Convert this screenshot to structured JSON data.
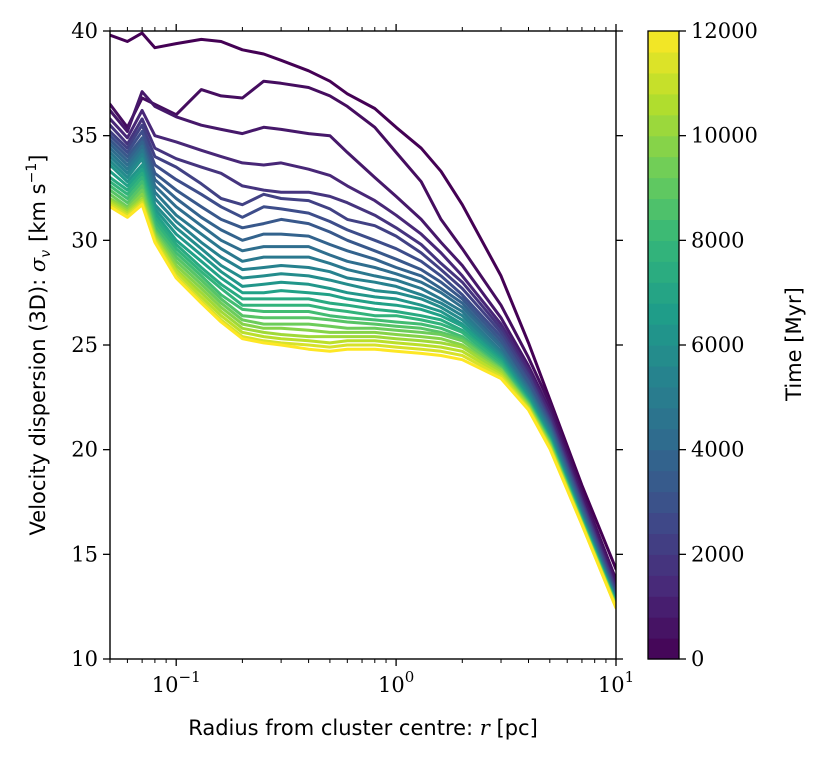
{
  "chart_data": {
    "type": "line",
    "title": "",
    "xlabel_text": "Radius from cluster centre: ",
    "xlabel_sym": "r",
    "xlabel_unit": " [pc]",
    "ylabel_text": "Velocity dispersion (3D): ",
    "ylabel_sym": "σ",
    "ylabel_sub": "v",
    "ylabel_unit": "[km s",
    "ylabel_exp": "−1",
    "ylabel_close": "]",
    "xscale": "log",
    "xlim": [
      0.05,
      10
    ],
    "ylim": [
      10,
      40
    ],
    "yticks": [
      "10",
      "15",
      "20",
      "25",
      "30",
      "35",
      "40"
    ],
    "xtick_base": "10",
    "xtick_exps": [
      "−1",
      "0",
      "1"
    ],
    "colorbar": {
      "label": "Time [Myr]",
      "min": 0,
      "max": 12000,
      "ticks": [
        "0",
        "2000",
        "4000",
        "6000",
        "8000",
        "10000",
        "12000"
      ]
    },
    "x": [
      0.05,
      0.06,
      0.07,
      0.08,
      0.1,
      0.13,
      0.16,
      0.2,
      0.25,
      0.3,
      0.4,
      0.5,
      0.6,
      0.8,
      1.0,
      1.3,
      1.6,
      2.0,
      3.0,
      4.0,
      5.0,
      7.0,
      10.0
    ],
    "series": [
      {
        "name": "t=0",
        "time": 0,
        "values": [
          39.8,
          39.5,
          39.9,
          39.2,
          39.4,
          39.6,
          39.5,
          39.1,
          38.9,
          38.6,
          38.1,
          37.6,
          37.0,
          36.3,
          35.4,
          34.4,
          33.3,
          31.7,
          28.3,
          25.1,
          22.4,
          18.3,
          14.3
        ]
      },
      {
        "name": "t=400",
        "time": 400,
        "values": [
          36.5,
          35.4,
          36.8,
          36.5,
          36.0,
          37.2,
          36.9,
          36.8,
          37.6,
          37.5,
          37.3,
          36.9,
          36.4,
          35.4,
          34.2,
          32.8,
          31.0,
          29.6,
          26.9,
          24.4,
          22.2,
          18.0,
          13.8
        ]
      },
      {
        "name": "t=800",
        "time": 800,
        "values": [
          36.2,
          35.2,
          37.1,
          36.4,
          35.9,
          35.5,
          35.3,
          35.1,
          35.4,
          35.3,
          35.1,
          35.0,
          34.2,
          33.0,
          32.1,
          31.0,
          29.9,
          28.8,
          26.3,
          24.0,
          21.9,
          17.8,
          13.6
        ]
      },
      {
        "name": "t=1300",
        "time": 1300,
        "values": [
          35.8,
          34.9,
          36.2,
          35.0,
          34.7,
          34.3,
          34.0,
          33.7,
          33.6,
          33.7,
          33.4,
          33.1,
          32.6,
          31.9,
          31.2,
          30.3,
          29.4,
          28.3,
          26.0,
          23.8,
          21.7,
          17.6,
          13.4
        ]
      },
      {
        "name": "t=1800",
        "time": 1800,
        "values": [
          35.5,
          34.6,
          35.8,
          34.4,
          33.9,
          33.5,
          33.2,
          32.6,
          32.4,
          32.3,
          32.3,
          32.1,
          31.8,
          31.2,
          30.6,
          29.8,
          28.9,
          28.0,
          25.8,
          23.6,
          21.5,
          17.5,
          13.3
        ]
      },
      {
        "name": "t=2300",
        "time": 2300,
        "values": [
          35.2,
          34.4,
          35.5,
          34.0,
          33.5,
          32.7,
          32.0,
          31.7,
          32.2,
          32.0,
          31.9,
          31.5,
          31.0,
          30.7,
          30.2,
          29.4,
          28.6,
          27.7,
          25.6,
          23.5,
          21.4,
          17.4,
          13.2
        ]
      },
      {
        "name": "t=2800",
        "time": 2800,
        "values": [
          35.0,
          34.2,
          35.2,
          33.6,
          32.9,
          32.2,
          31.6,
          31.1,
          31.6,
          31.5,
          31.3,
          30.9,
          30.5,
          30.0,
          29.6,
          29.0,
          28.3,
          27.4,
          25.4,
          23.3,
          21.3,
          17.3,
          13.1
        ]
      },
      {
        "name": "t=3300",
        "time": 3300,
        "values": [
          34.8,
          34.0,
          34.9,
          33.2,
          32.4,
          31.6,
          31.0,
          30.6,
          30.8,
          31.0,
          30.8,
          30.4,
          30.0,
          29.5,
          29.1,
          28.6,
          28.0,
          27.2,
          25.2,
          23.2,
          21.2,
          17.2,
          13.0
        ]
      },
      {
        "name": "t=3800",
        "time": 3800,
        "values": [
          34.6,
          33.8,
          34.7,
          32.9,
          32.0,
          31.1,
          30.5,
          30.0,
          30.3,
          30.3,
          30.2,
          29.8,
          29.5,
          29.1,
          28.7,
          28.3,
          27.7,
          27.0,
          25.0,
          23.0,
          21.1,
          17.1,
          12.95
        ]
      },
      {
        "name": "t=4300",
        "time": 4300,
        "values": [
          34.4,
          33.6,
          34.5,
          32.6,
          31.6,
          30.7,
          30.0,
          29.5,
          29.7,
          29.7,
          29.7,
          29.3,
          29.0,
          28.7,
          28.4,
          28.0,
          27.5,
          26.8,
          24.9,
          22.9,
          21.0,
          17.0,
          12.9
        ]
      },
      {
        "name": "t=4800",
        "time": 4800,
        "values": [
          34.2,
          33.4,
          34.3,
          32.3,
          31.2,
          30.3,
          29.6,
          29.0,
          29.2,
          29.2,
          29.2,
          28.9,
          28.6,
          28.3,
          28.1,
          27.7,
          27.2,
          26.6,
          24.7,
          22.8,
          20.9,
          16.9,
          12.85
        ]
      },
      {
        "name": "t=5300",
        "time": 5300,
        "values": [
          34.0,
          33.2,
          34.1,
          32.0,
          30.9,
          29.9,
          29.2,
          28.6,
          28.7,
          28.8,
          28.7,
          28.5,
          28.2,
          28.0,
          27.8,
          27.4,
          27.0,
          26.4,
          24.6,
          22.7,
          20.8,
          16.85,
          12.8
        ]
      },
      {
        "name": "t=5800",
        "time": 5800,
        "values": [
          33.8,
          33.0,
          33.9,
          31.7,
          30.6,
          29.6,
          28.8,
          28.2,
          28.3,
          28.4,
          28.3,
          28.1,
          27.9,
          27.6,
          27.5,
          27.2,
          26.8,
          26.2,
          24.5,
          22.6,
          20.7,
          16.8,
          12.75
        ]
      },
      {
        "name": "t=6300",
        "time": 6300,
        "values": [
          33.6,
          32.8,
          33.6,
          31.5,
          30.3,
          29.3,
          28.5,
          27.8,
          27.9,
          28.0,
          27.9,
          27.7,
          27.5,
          27.3,
          27.2,
          26.9,
          26.6,
          26.0,
          24.4,
          22.5,
          20.6,
          16.75,
          12.7
        ]
      },
      {
        "name": "t=6800",
        "time": 6800,
        "values": [
          33.3,
          32.6,
          33.4,
          31.3,
          30.0,
          29.0,
          28.2,
          27.5,
          27.5,
          27.6,
          27.5,
          27.4,
          27.2,
          27.0,
          26.9,
          26.7,
          26.4,
          25.9,
          24.3,
          22.4,
          20.55,
          16.7,
          12.68
        ]
      },
      {
        "name": "t=7300",
        "time": 7300,
        "values": [
          33.0,
          32.4,
          33.2,
          31.1,
          29.8,
          28.7,
          27.9,
          27.2,
          27.2,
          27.2,
          27.2,
          27.0,
          26.9,
          26.7,
          26.6,
          26.4,
          26.2,
          25.7,
          24.2,
          22.35,
          20.5,
          16.65,
          12.65
        ]
      },
      {
        "name": "t=7800",
        "time": 7800,
        "values": [
          32.8,
          32.2,
          33.0,
          30.9,
          29.6,
          28.5,
          27.7,
          26.9,
          26.9,
          26.9,
          26.9,
          26.7,
          26.6,
          26.4,
          26.4,
          26.2,
          26.0,
          25.6,
          24.1,
          22.3,
          20.45,
          16.6,
          12.62
        ]
      },
      {
        "name": "t=8300",
        "time": 8300,
        "values": [
          32.6,
          32.0,
          32.8,
          30.7,
          29.4,
          28.3,
          27.4,
          26.7,
          26.6,
          26.6,
          26.6,
          26.4,
          26.3,
          26.2,
          26.1,
          26.0,
          25.8,
          25.4,
          24.0,
          22.25,
          20.4,
          16.58,
          12.6
        ]
      },
      {
        "name": "t=8800",
        "time": 8800,
        "values": [
          32.4,
          31.8,
          32.6,
          30.5,
          29.2,
          28.1,
          27.2,
          26.4,
          26.3,
          26.3,
          26.3,
          26.2,
          26.1,
          26.0,
          25.9,
          25.8,
          25.6,
          25.3,
          23.9,
          22.2,
          20.35,
          16.55,
          12.58
        ]
      },
      {
        "name": "t=9300",
        "time": 9300,
        "values": [
          32.2,
          31.6,
          32.4,
          30.4,
          29.0,
          27.9,
          27.0,
          26.2,
          26.0,
          26.0,
          26.0,
          25.9,
          25.8,
          25.8,
          25.7,
          25.6,
          25.5,
          25.2,
          23.85,
          22.15,
          20.3,
          16.52,
          12.55
        ]
      },
      {
        "name": "t=9800",
        "time": 9800,
        "values": [
          32.0,
          31.5,
          32.2,
          30.3,
          28.8,
          27.7,
          26.8,
          26.0,
          25.8,
          25.8,
          25.7,
          25.6,
          25.6,
          25.6,
          25.5,
          25.4,
          25.3,
          25.0,
          23.8,
          22.1,
          20.25,
          16.5,
          12.52
        ]
      },
      {
        "name": "t=10300",
        "time": 10300,
        "values": [
          31.9,
          31.4,
          32.0,
          30.2,
          28.6,
          27.5,
          26.6,
          25.8,
          25.6,
          25.5,
          25.4,
          25.4,
          25.4,
          25.4,
          25.3,
          25.2,
          25.1,
          24.9,
          23.7,
          22.05,
          20.2,
          16.48,
          12.5
        ]
      },
      {
        "name": "t=10800",
        "time": 10800,
        "values": [
          31.8,
          31.3,
          31.9,
          30.1,
          28.5,
          27.3,
          26.4,
          25.6,
          25.4,
          25.3,
          25.2,
          25.1,
          25.2,
          25.2,
          25.1,
          25.0,
          24.9,
          24.7,
          23.6,
          22.0,
          20.15,
          16.46,
          12.48
        ]
      },
      {
        "name": "t=11300",
        "time": 11300,
        "values": [
          31.7,
          31.2,
          31.8,
          30.0,
          28.3,
          27.1,
          26.2,
          25.4,
          25.2,
          25.1,
          25.0,
          24.9,
          25.0,
          25.0,
          24.9,
          24.8,
          24.7,
          24.5,
          23.5,
          21.95,
          20.1,
          16.44,
          12.46
        ]
      },
      {
        "name": "t=12000",
        "time": 12000,
        "values": [
          31.6,
          31.1,
          31.7,
          29.9,
          28.2,
          27.0,
          26.1,
          25.3,
          25.1,
          25.0,
          24.8,
          24.7,
          24.8,
          24.8,
          24.7,
          24.6,
          24.5,
          24.3,
          23.4,
          21.9,
          20.05,
          16.42,
          12.44
        ]
      }
    ]
  }
}
